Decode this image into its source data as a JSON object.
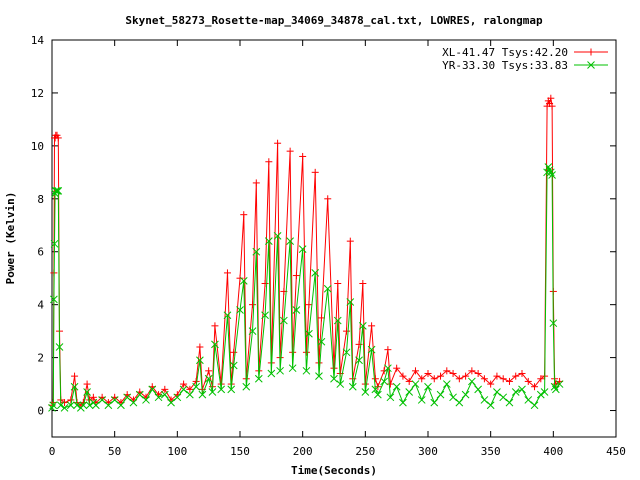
{
  "chart_data": {
    "type": "line",
    "title": "Skynet_58273_Rosette-map_34069_34878_cal.txt, LOWRES, ralongmap",
    "xlabel": "Time(Seconds)",
    "ylabel": "Power (Kelvin)",
    "xlim": [
      0,
      450
    ],
    "ylim": [
      -1,
      14
    ],
    "xticks": [
      0,
      50,
      100,
      150,
      200,
      250,
      300,
      350,
      400,
      450
    ],
    "yticks": [
      0,
      2,
      4,
      6,
      8,
      10,
      12,
      14
    ],
    "grid": false,
    "legend_position": "top-right",
    "colors": {
      "XL": "#ff0000",
      "YR": "#00c000"
    },
    "series": [
      {
        "name": "XL-41.47 Tsys:42.20",
        "marker": "plus",
        "color": "#ff0000",
        "x": [
          0,
          1,
          1.5,
          2,
          2.5,
          3,
          4,
          5,
          6,
          7,
          10,
          15,
          18,
          20,
          23,
          25,
          28,
          30,
          33,
          35,
          40,
          45,
          50,
          55,
          60,
          65,
          70,
          75,
          80,
          85,
          90,
          95,
          100,
          105,
          110,
          115,
          118,
          120,
          125,
          128,
          130,
          135,
          140,
          143,
          145,
          150,
          153,
          155,
          160,
          163,
          165,
          170,
          173,
          175,
          180,
          182,
          185,
          190,
          192,
          195,
          200,
          203,
          205,
          210,
          213,
          215,
          220,
          225,
          228,
          230,
          235,
          238,
          240,
          245,
          248,
          250,
          255,
          258,
          260,
          265,
          268,
          270,
          275,
          280,
          285,
          290,
          295,
          300,
          305,
          310,
          315,
          320,
          325,
          330,
          335,
          340,
          345,
          350,
          355,
          360,
          365,
          370,
          375,
          380,
          385,
          390,
          393,
          395,
          396,
          397,
          398,
          399,
          400,
          401,
          402,
          405
        ],
        "y": [
          0.2,
          0.3,
          5.2,
          10.3,
          10.3,
          10.4,
          10.4,
          10.3,
          3.0,
          0.4,
          0.3,
          0.4,
          1.3,
          0.3,
          0.2,
          0.3,
          1.0,
          0.4,
          0.5,
          0.3,
          0.5,
          0.3,
          0.5,
          0.3,
          0.6,
          0.4,
          0.7,
          0.5,
          0.9,
          0.6,
          0.8,
          0.4,
          0.6,
          1.0,
          0.8,
          1.1,
          2.4,
          0.8,
          1.5,
          0.9,
          3.2,
          1.0,
          5.2,
          1.0,
          2.2,
          5.0,
          7.4,
          1.2,
          4.0,
          8.6,
          1.5,
          4.8,
          9.4,
          1.8,
          10.1,
          2.0,
          4.5,
          9.8,
          2.2,
          5.1,
          9.6,
          2.2,
          4.0,
          9.0,
          1.8,
          3.5,
          8.0,
          1.6,
          4.8,
          1.4,
          3.0,
          6.4,
          1.2,
          2.5,
          4.8,
          1.0,
          3.2,
          1.2,
          0.9,
          1.5,
          2.3,
          1.0,
          1.6,
          1.3,
          1.1,
          1.5,
          1.2,
          1.4,
          1.2,
          1.3,
          1.5,
          1.4,
          1.2,
          1.3,
          1.5,
          1.4,
          1.2,
          1.0,
          1.3,
          1.2,
          1.1,
          1.3,
          1.4,
          1.1,
          0.9,
          1.2,
          1.3,
          11.5,
          11.7,
          11.6,
          11.8,
          11.5,
          4.5,
          1.2,
          1.0,
          1.1
        ]
      },
      {
        "name": "YR-33.30 Tsys:33.83",
        "marker": "cross",
        "color": "#00c000",
        "x": [
          0,
          1,
          1.5,
          2,
          2.5,
          3,
          4,
          5,
          6,
          7,
          10,
          15,
          18,
          20,
          23,
          25,
          28,
          30,
          33,
          35,
          40,
          45,
          50,
          55,
          60,
          65,
          70,
          75,
          80,
          85,
          90,
          95,
          100,
          105,
          110,
          115,
          118,
          120,
          125,
          128,
          130,
          135,
          140,
          143,
          145,
          150,
          153,
          155,
          160,
          163,
          165,
          170,
          173,
          175,
          180,
          182,
          185,
          190,
          192,
          195,
          200,
          203,
          205,
          210,
          213,
          215,
          220,
          225,
          228,
          230,
          235,
          238,
          240,
          245,
          248,
          250,
          255,
          258,
          260,
          265,
          268,
          270,
          275,
          280,
          285,
          290,
          295,
          300,
          305,
          310,
          315,
          320,
          325,
          330,
          335,
          340,
          345,
          350,
          355,
          360,
          365,
          370,
          375,
          380,
          385,
          390,
          393,
          395,
          396,
          397,
          398,
          399,
          400,
          401,
          402,
          405
        ],
        "y": [
          0.1,
          0.2,
          4.2,
          6.3,
          8.2,
          8.3,
          8.3,
          8.3,
          2.4,
          0.2,
          0.1,
          0.2,
          0.9,
          0.2,
          0.1,
          0.2,
          0.7,
          0.2,
          0.3,
          0.2,
          0.4,
          0.2,
          0.4,
          0.2,
          0.5,
          0.3,
          0.6,
          0.4,
          0.8,
          0.5,
          0.6,
          0.3,
          0.5,
          0.8,
          0.6,
          0.9,
          1.9,
          0.6,
          1.2,
          0.7,
          2.5,
          0.8,
          3.6,
          0.8,
          1.7,
          3.8,
          4.9,
          0.9,
          3.0,
          6.0,
          1.2,
          3.6,
          6.4,
          1.4,
          6.6,
          1.5,
          3.4,
          6.4,
          1.6,
          3.8,
          6.1,
          1.5,
          2.9,
          5.2,
          1.3,
          2.6,
          4.6,
          1.2,
          3.4,
          1.0,
          2.2,
          4.1,
          0.9,
          1.9,
          3.2,
          0.7,
          2.3,
          0.8,
          0.6,
          1.1,
          1.6,
          0.5,
          0.9,
          0.3,
          0.7,
          1.0,
          0.4,
          0.9,
          0.3,
          0.6,
          1.0,
          0.5,
          0.3,
          0.6,
          1.1,
          0.8,
          0.4,
          0.2,
          0.7,
          0.5,
          0.3,
          0.7,
          0.8,
          0.4,
          0.2,
          0.6,
          0.7,
          9.0,
          9.2,
          9.1,
          9.0,
          8.9,
          3.3,
          0.9,
          0.8,
          1.0
        ]
      }
    ]
  }
}
